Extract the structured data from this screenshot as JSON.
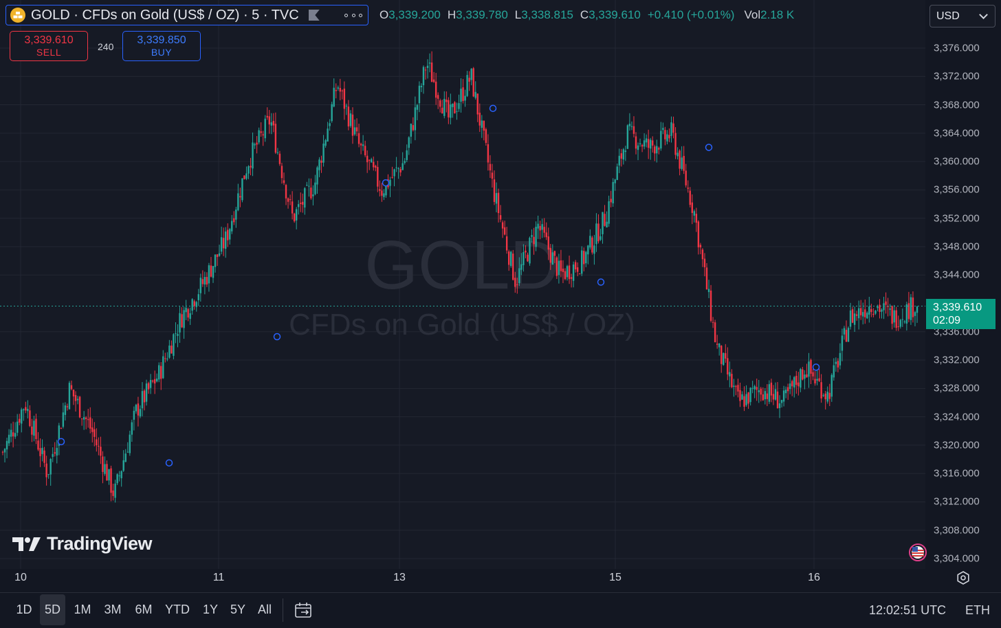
{
  "header": {
    "symbol_title": "GOLD · CFDs on Gold (US$ / OZ) · 5 · TVC",
    "ohlc": [
      {
        "key": "O",
        "value": "3,339.200"
      },
      {
        "key": "H",
        "value": "3,339.780"
      },
      {
        "key": "L",
        "value": "3,338.815"
      },
      {
        "key": "C",
        "value": "3,339.610"
      }
    ],
    "change": "+0.410 (+0.01%)",
    "volume_key": "Vol",
    "volume_value": "2.18 K",
    "currency": "USD"
  },
  "trade": {
    "sell_price": "3,339.610",
    "sell_label": "SELL",
    "spread": "240",
    "buy_price": "3,339.850",
    "buy_label": "BUY"
  },
  "watermark": {
    "symbol": "GOLD",
    "description": "CFDs on Gold (US$ / OZ)",
    "brand": "TradingView"
  },
  "price_axis": {
    "labels": [
      "3,376.000",
      "3,372.000",
      "3,368.000",
      "3,364.000",
      "3,360.000",
      "3,356.000",
      "3,352.000",
      "3,348.000",
      "3,344.000",
      "3,336.000",
      "3,332.000",
      "3,328.000",
      "3,324.000",
      "3,320.000",
      "3,316.000",
      "3,312.000",
      "3,308.000",
      "3,304.000"
    ],
    "last_price": "3,339.610",
    "countdown": "02:09"
  },
  "time_axis": {
    "labels": [
      "10",
      "11",
      "13",
      "15",
      "16"
    ]
  },
  "bottom_bar": {
    "ranges": [
      "1D",
      "5D",
      "1M",
      "3M",
      "6M",
      "YTD",
      "1Y",
      "5Y",
      "All"
    ],
    "active_range": "5D",
    "clock": "12:02:51 UTC",
    "session": "ETH"
  },
  "colors": {
    "up": "#26a69a",
    "down": "#f23645",
    "background": "#161a25",
    "accent": "#2962ff"
  },
  "chart_data": {
    "type": "candlestick",
    "y_range": [
      3304,
      3376
    ],
    "x_ticks": [
      "10",
      "11",
      "13",
      "15",
      "16"
    ],
    "close_path_approx": [
      {
        "x": "10",
        "close": 3319
      },
      {
        "x": "10",
        "close": 3326
      },
      {
        "x": "10",
        "close": 3316
      },
      {
        "x": "10",
        "close": 3328
      },
      {
        "x": "10",
        "close": 3322
      },
      {
        "x": "10",
        "close": 3313
      },
      {
        "x": "11",
        "close": 3325
      },
      {
        "x": "11",
        "close": 3330
      },
      {
        "x": "11",
        "close": 3338
      },
      {
        "x": "11",
        "close": 3343
      },
      {
        "x": "11",
        "close": 3349
      },
      {
        "x": "11",
        "close": 3360
      },
      {
        "x": "11",
        "close": 3366
      },
      {
        "x": "11",
        "close": 3352
      },
      {
        "x": "11",
        "close": 3357
      },
      {
        "x": "13",
        "close": 3371
      },
      {
        "x": "13",
        "close": 3362
      },
      {
        "x": "13",
        "close": 3356
      },
      {
        "x": "13",
        "close": 3360
      },
      {
        "x": "13",
        "close": 3374
      },
      {
        "x": "13",
        "close": 3366
      },
      {
        "x": "13",
        "close": 3372
      },
      {
        "x": "13",
        "close": 3356
      },
      {
        "x": "13",
        "close": 3343
      },
      {
        "x": "13",
        "close": 3351
      },
      {
        "x": "15",
        "close": 3344
      },
      {
        "x": "15",
        "close": 3346
      },
      {
        "x": "15",
        "close": 3352
      },
      {
        "x": "15",
        "close": 3364
      },
      {
        "x": "15",
        "close": 3362
      },
      {
        "x": "15",
        "close": 3364
      },
      {
        "x": "15",
        "close": 3353
      },
      {
        "x": "15",
        "close": 3334
      },
      {
        "x": "15",
        "close": 3326
      },
      {
        "x": "15",
        "close": 3328
      },
      {
        "x": "16",
        "close": 3326
      },
      {
        "x": "16",
        "close": 3331
      },
      {
        "x": "16",
        "close": 3327
      },
      {
        "x": "16",
        "close": 3338
      },
      {
        "x": "16",
        "close": 3340
      },
      {
        "x": "16",
        "close": 3338
      },
      {
        "x": "16",
        "close": 3340
      }
    ],
    "last_price": 3339.61
  }
}
